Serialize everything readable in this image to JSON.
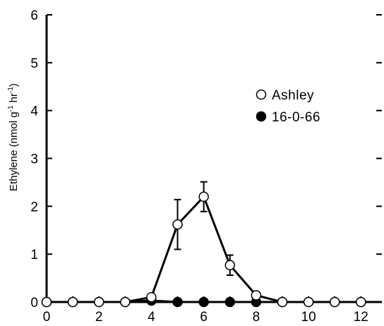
{
  "chart_data": {
    "type": "scatter",
    "title": "",
    "xlabel": "",
    "ylabel": {
      "parts": [
        "Ethylene (nmol g",
        "-1",
        " hr",
        "-1",
        ")"
      ]
    },
    "xlim": [
      0,
      12.8
    ],
    "ylim": [
      0,
      6
    ],
    "x_ticks": [
      "0",
      "2",
      "4",
      "6",
      "8",
      "10",
      "12"
    ],
    "x_tick_values": [
      0,
      2,
      4,
      6,
      8,
      10,
      12
    ],
    "y_ticks": [
      "0",
      "1",
      "2",
      "3",
      "4",
      "5",
      "6"
    ],
    "y_tick_values": [
      0,
      1,
      2,
      3,
      4,
      5,
      6
    ],
    "x_minor_ticks": [
      1,
      3,
      5,
      7,
      9,
      11
    ],
    "grid": false,
    "legend_position": "upper-right",
    "series": [
      {
        "name": "Ashley",
        "marker": "open-circle",
        "color": "#000000",
        "fill": "#ffffff",
        "x": [
          0,
          1,
          2,
          3,
          4,
          5,
          6,
          7,
          8,
          9,
          10,
          11,
          12
        ],
        "y": [
          0,
          0,
          0,
          0,
          0.1,
          1.62,
          2.2,
          0.77,
          0.14,
          0,
          0,
          0,
          0
        ],
        "error": [
          0,
          0,
          0,
          0,
          0,
          0.52,
          0.31,
          0.21,
          0,
          0,
          0,
          0,
          0
        ]
      },
      {
        "name": "16-0-66",
        "marker": "filled-circle",
        "color": "#000000",
        "fill": "#000000",
        "x": [
          0,
          1,
          2,
          3,
          4,
          5,
          6,
          7,
          8,
          9,
          10,
          11,
          12
        ],
        "y": [
          0,
          0,
          0,
          0,
          0.03,
          0,
          0,
          0,
          0,
          0,
          0,
          0,
          0
        ],
        "error": [
          0,
          0,
          0,
          0,
          0,
          0,
          0,
          0,
          0,
          0,
          0,
          0,
          0
        ]
      }
    ]
  }
}
